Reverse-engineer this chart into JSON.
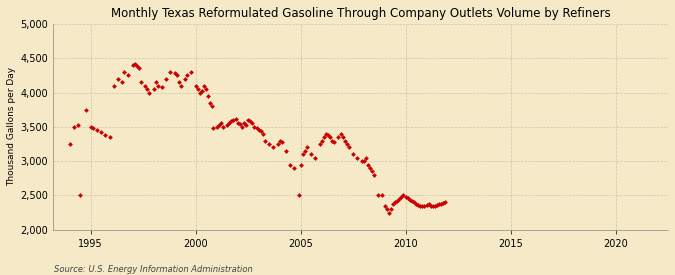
{
  "title": "Monthly Texas Reformulated Gasoline Through Company Outlets Volume by Refiners",
  "ylabel": "Thousand Gallons per Day",
  "source": "Source: U.S. Energy Information Administration",
  "background_color": "#f5e9c8",
  "plot_bg_color": "#f5e9c8",
  "marker_color": "#cc0000",
  "xlim": [
    1993.2,
    2022.5
  ],
  "ylim": [
    2000,
    5000
  ],
  "yticks": [
    2000,
    2500,
    3000,
    3500,
    4000,
    4500,
    5000
  ],
  "xticks": [
    1995,
    2000,
    2005,
    2010,
    2015,
    2020
  ],
  "data": [
    [
      1994.0,
      3250
    ],
    [
      1994.2,
      3500
    ],
    [
      1994.4,
      3520
    ],
    [
      1994.5,
      2500
    ],
    [
      1994.8,
      3750
    ],
    [
      1995.0,
      3500
    ],
    [
      1995.1,
      3480
    ],
    [
      1995.3,
      3450
    ],
    [
      1995.5,
      3420
    ],
    [
      1995.7,
      3380
    ],
    [
      1995.9,
      3350
    ],
    [
      1996.1,
      4100
    ],
    [
      1996.3,
      4200
    ],
    [
      1996.5,
      4150
    ],
    [
      1996.6,
      4300
    ],
    [
      1996.8,
      4250
    ],
    [
      1997.0,
      4400
    ],
    [
      1997.1,
      4420
    ],
    [
      1997.2,
      4380
    ],
    [
      1997.3,
      4350
    ],
    [
      1997.4,
      4150
    ],
    [
      1997.6,
      4100
    ],
    [
      1997.7,
      4050
    ],
    [
      1997.8,
      4000
    ],
    [
      1998.0,
      4050
    ],
    [
      1998.1,
      4150
    ],
    [
      1998.2,
      4100
    ],
    [
      1998.4,
      4080
    ],
    [
      1998.6,
      4200
    ],
    [
      1998.8,
      4300
    ],
    [
      1999.0,
      4280
    ],
    [
      1999.1,
      4260
    ],
    [
      1999.2,
      4150
    ],
    [
      1999.3,
      4100
    ],
    [
      1999.5,
      4200
    ],
    [
      1999.6,
      4250
    ],
    [
      1999.8,
      4300
    ],
    [
      2000.0,
      4100
    ],
    [
      2000.1,
      4050
    ],
    [
      2000.2,
      4000
    ],
    [
      2000.3,
      4020
    ],
    [
      2000.4,
      4100
    ],
    [
      2000.5,
      4050
    ],
    [
      2000.6,
      3950
    ],
    [
      2000.7,
      3850
    ],
    [
      2000.8,
      3800
    ],
    [
      2000.85,
      3480
    ],
    [
      2001.0,
      3500
    ],
    [
      2001.1,
      3520
    ],
    [
      2001.2,
      3550
    ],
    [
      2001.3,
      3500
    ],
    [
      2001.5,
      3520
    ],
    [
      2001.6,
      3550
    ],
    [
      2001.7,
      3580
    ],
    [
      2001.8,
      3600
    ],
    [
      2001.9,
      3620
    ],
    [
      2002.0,
      3560
    ],
    [
      2002.1,
      3540
    ],
    [
      2002.2,
      3500
    ],
    [
      2002.3,
      3550
    ],
    [
      2002.4,
      3520
    ],
    [
      2002.5,
      3600
    ],
    [
      2002.6,
      3580
    ],
    [
      2002.7,
      3560
    ],
    [
      2002.8,
      3500
    ],
    [
      2002.9,
      3480
    ],
    [
      2003.0,
      3460
    ],
    [
      2003.1,
      3440
    ],
    [
      2003.2,
      3400
    ],
    [
      2003.3,
      3300
    ],
    [
      2003.5,
      3250
    ],
    [
      2003.7,
      3200
    ],
    [
      2003.9,
      3250
    ],
    [
      2004.0,
      3300
    ],
    [
      2004.1,
      3280
    ],
    [
      2004.3,
      3150
    ],
    [
      2004.5,
      2950
    ],
    [
      2004.7,
      2900
    ],
    [
      2004.9,
      2500
    ],
    [
      2005.0,
      2950
    ],
    [
      2005.1,
      3100
    ],
    [
      2005.2,
      3150
    ],
    [
      2005.3,
      3200
    ],
    [
      2005.5,
      3100
    ],
    [
      2005.7,
      3050
    ],
    [
      2005.9,
      3250
    ],
    [
      2006.0,
      3300
    ],
    [
      2006.1,
      3350
    ],
    [
      2006.2,
      3400
    ],
    [
      2006.3,
      3380
    ],
    [
      2006.4,
      3350
    ],
    [
      2006.5,
      3300
    ],
    [
      2006.6,
      3280
    ],
    [
      2006.8,
      3350
    ],
    [
      2006.9,
      3400
    ],
    [
      2007.0,
      3350
    ],
    [
      2007.1,
      3300
    ],
    [
      2007.2,
      3250
    ],
    [
      2007.3,
      3200
    ],
    [
      2007.5,
      3100
    ],
    [
      2007.7,
      3050
    ],
    [
      2007.9,
      3000
    ],
    [
      2008.0,
      3000
    ],
    [
      2008.1,
      3050
    ],
    [
      2008.2,
      2950
    ],
    [
      2008.3,
      2900
    ],
    [
      2008.4,
      2850
    ],
    [
      2008.5,
      2800
    ],
    [
      2008.7,
      2500
    ],
    [
      2008.9,
      2500
    ],
    [
      2009.0,
      2350
    ],
    [
      2009.1,
      2300
    ],
    [
      2009.2,
      2250
    ],
    [
      2009.3,
      2300
    ],
    [
      2009.4,
      2380
    ],
    [
      2009.5,
      2400
    ],
    [
      2009.6,
      2420
    ],
    [
      2009.7,
      2450
    ],
    [
      2009.8,
      2480
    ],
    [
      2009.9,
      2500
    ],
    [
      2010.0,
      2480
    ],
    [
      2010.1,
      2460
    ],
    [
      2010.2,
      2440
    ],
    [
      2010.3,
      2420
    ],
    [
      2010.4,
      2400
    ],
    [
      2010.5,
      2380
    ],
    [
      2010.6,
      2360
    ],
    [
      2010.7,
      2350
    ],
    [
      2010.8,
      2340
    ],
    [
      2010.9,
      2350
    ],
    [
      2011.0,
      2360
    ],
    [
      2011.1,
      2370
    ],
    [
      2011.2,
      2350
    ],
    [
      2011.3,
      2340
    ],
    [
      2011.4,
      2350
    ],
    [
      2011.5,
      2360
    ],
    [
      2011.6,
      2370
    ],
    [
      2011.7,
      2380
    ],
    [
      2011.8,
      2390
    ],
    [
      2011.9,
      2400
    ]
  ]
}
